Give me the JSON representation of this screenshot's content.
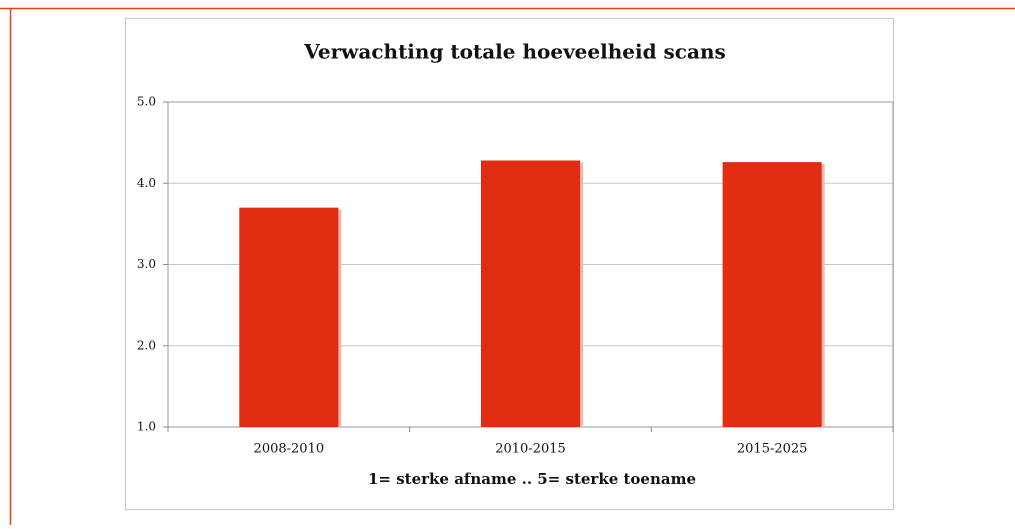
{
  "chart_data": {
    "type": "bar",
    "title": "Verwachting totale hoeveelheid scans",
    "x_label": "1= sterke afname .. 5= sterke toename",
    "categories": [
      "2008-2010",
      "2010-2015",
      "2015-2025"
    ],
    "values": [
      3.7,
      4.28,
      4.26
    ],
    "color": "#e02d12",
    "ylim": [
      1,
      5
    ],
    "yticks": [
      {
        "value": 1,
        "label": "1.0"
      },
      {
        "value": 2,
        "label": "2.0"
      },
      {
        "value": 3,
        "label": "3.0"
      },
      {
        "value": 4,
        "label": "4.0"
      },
      {
        "value": 5,
        "label": "5.0"
      }
    ],
    "grid": true
  }
}
